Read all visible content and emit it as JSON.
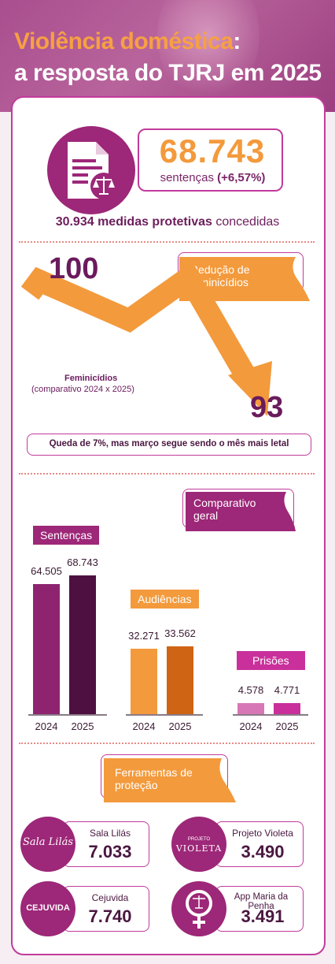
{
  "header": {
    "title_line1": "Violência doméstica",
    "title_colon": ":",
    "title_line2": "a resposta do TJRJ em 2025"
  },
  "sentencas_highlight": {
    "value": "68.743",
    "label": "sentenças",
    "change": "(+6,57%)",
    "icon": "document-scales-icon"
  },
  "medidas": {
    "value_text": "30.934 medidas protetivas",
    "suffix": "concedidas"
  },
  "feminicidios": {
    "tag": "Redução de feminicídios",
    "value_2024": "100",
    "value_2025": "93",
    "label": "Feminicídios",
    "sublabel": "(comparativo 2024 x 2025)",
    "note": "Queda de 7%, mas março segue sendo o mês mais letal"
  },
  "comparativo_tag": "Comparativo geral",
  "chart_data": [
    {
      "type": "bar",
      "title": "Sentenças",
      "categories": [
        "2024",
        "2025"
      ],
      "values": [
        64505,
        68743
      ],
      "value_labels": [
        "64.505",
        "68.743"
      ],
      "colors": [
        "#8e2470",
        "#4e1040"
      ]
    },
    {
      "type": "bar",
      "title": "Audiências",
      "categories": [
        "2024",
        "2025"
      ],
      "values": [
        32271,
        33562
      ],
      "value_labels": [
        "32.271",
        "33.562"
      ],
      "colors": [
        "#f39a3c",
        "#cf6414"
      ]
    },
    {
      "type": "bar",
      "title": "Prisões",
      "categories": [
        "2024",
        "2025"
      ],
      "values": [
        4578,
        4771
      ],
      "value_labels": [
        "4.578",
        "4.771"
      ],
      "colors": [
        "#d877b6",
        "#c9309b"
      ]
    }
  ],
  "ferramentas": {
    "tag": "Ferramentas de proteção",
    "items": [
      {
        "name": "Sala Lilás",
        "value": "7.033",
        "logo_text": "Sala Lilás"
      },
      {
        "name": "Projeto Violeta",
        "value": "3.490",
        "logo_text": "VIOLETA",
        "logo_small": "PROJETO"
      },
      {
        "name": "Cejuvida",
        "value": "7.740",
        "logo_text": "CEJUVIDA"
      },
      {
        "name": "App Maria da Penha",
        "value": "3.491",
        "logo_text": ""
      }
    ]
  },
  "colors": {
    "accent_orange": "#f39a3c",
    "accent_purple": "#9d2778",
    "border_pink": "#c23b9c"
  }
}
